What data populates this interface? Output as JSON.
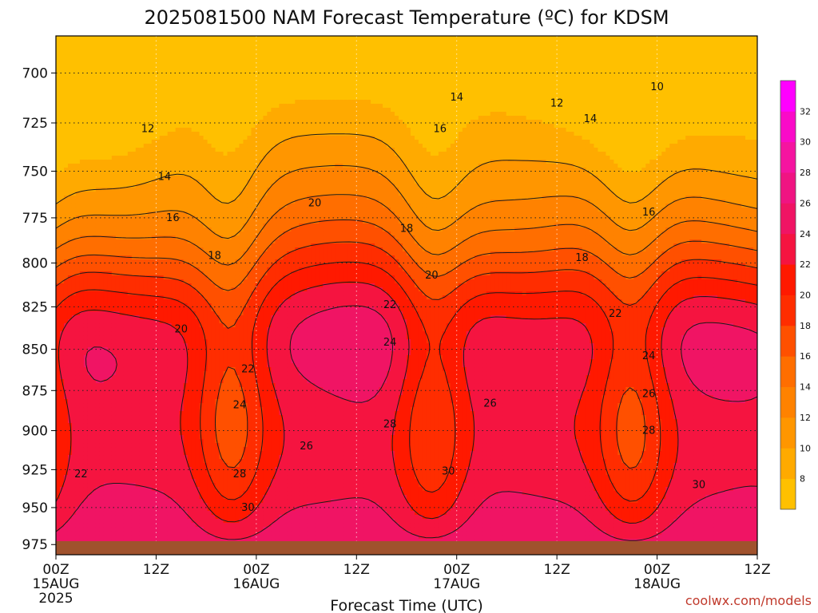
{
  "chart_data": {
    "type": "heatmap",
    "title": "2025081500 NAM Forecast Temperature (ºC) for KDSM",
    "xlabel": "Forecast Time (UTC)",
    "ylabel": "",
    "x_ticks": [
      {
        "hour": 0,
        "label": "00Z",
        "date": "15AUG",
        "year": "2025"
      },
      {
        "hour": 12,
        "label": "12Z"
      },
      {
        "hour": 24,
        "label": "00Z",
        "date": "16AUG"
      },
      {
        "hour": 36,
        "label": "12Z"
      },
      {
        "hour": 48,
        "label": "00Z",
        "date": "17AUG"
      },
      {
        "hour": 60,
        "label": "12Z"
      },
      {
        "hour": 72,
        "label": "00Z",
        "date": "18AUG"
      },
      {
        "hour": 84,
        "label": "12Z"
      }
    ],
    "xlim": [
      0,
      84
    ],
    "y_ticks": [
      700,
      725,
      750,
      775,
      800,
      825,
      850,
      875,
      900,
      925,
      950,
      975
    ],
    "ylim": [
      982,
      682
    ],
    "y_scale": "log-pressure",
    "grid": true,
    "colorbar": {
      "placement": "right",
      "levels": [
        6,
        8,
        10,
        12,
        14,
        16,
        18,
        20,
        22,
        24,
        26,
        28,
        30,
        32,
        34
      ],
      "tick_labels": [
        "8",
        "10",
        "12",
        "14",
        "16",
        "18",
        "20",
        "22",
        "24",
        "26",
        "28",
        "30",
        "32"
      ],
      "colors": [
        "#ffc000",
        "#ffaa00",
        "#ff9600",
        "#ff8200",
        "#ff6e00",
        "#ff5000",
        "#ff2d00",
        "#ff1900",
        "#f51440",
        "#f01464",
        "#f01482",
        "#f514a0",
        "#fa0ac8",
        "#ff00ff"
      ]
    },
    "contour_levels": [
      10,
      12,
      14,
      16,
      18,
      20,
      22,
      24,
      26,
      28,
      30
    ],
    "contour_labels": [
      {
        "value": "10",
        "x": 72,
        "p": 707
      },
      {
        "value": "12",
        "x": 11,
        "p": 728
      },
      {
        "value": "12",
        "x": 60,
        "p": 715
      },
      {
        "value": "14",
        "x": 13,
        "p": 753
      },
      {
        "value": "14",
        "x": 48,
        "p": 712
      },
      {
        "value": "14",
        "x": 64,
        "p": 723
      },
      {
        "value": "16",
        "x": 14,
        "p": 775
      },
      {
        "value": "16",
        "x": 46,
        "p": 728
      },
      {
        "value": "16",
        "x": 71,
        "p": 772
      },
      {
        "value": "18",
        "x": 19,
        "p": 796
      },
      {
        "value": "18",
        "x": 42,
        "p": 781
      },
      {
        "value": "18",
        "x": 63,
        "p": 797
      },
      {
        "value": "20",
        "x": 15,
        "p": 838
      },
      {
        "value": "20",
        "x": 31,
        "p": 767
      },
      {
        "value": "20",
        "x": 45,
        "p": 807
      },
      {
        "value": "22",
        "x": 23,
        "p": 862
      },
      {
        "value": "22",
        "x": 40,
        "p": 824
      },
      {
        "value": "22",
        "x": 67,
        "p": 829
      },
      {
        "value": "22",
        "x": 3,
        "p": 928
      },
      {
        "value": "24",
        "x": 22,
        "p": 884
      },
      {
        "value": "24",
        "x": 40,
        "p": 846
      },
      {
        "value": "24",
        "x": 71,
        "p": 854
      },
      {
        "value": "26",
        "x": 30,
        "p": 910
      },
      {
        "value": "26",
        "x": 52,
        "p": 883
      },
      {
        "value": "26",
        "x": 71,
        "p": 877
      },
      {
        "value": "28",
        "x": 22,
        "p": 928
      },
      {
        "value": "28",
        "x": 40,
        "p": 896
      },
      {
        "value": "28",
        "x": 71,
        "p": 900
      },
      {
        "value": "30",
        "x": 23,
        "p": 950
      },
      {
        "value": "30",
        "x": 47,
        "p": 926
      },
      {
        "value": "30",
        "x": 77,
        "p": 935
      }
    ],
    "ground_color": "#a0522d"
  },
  "credit": "coolwx.com/models"
}
